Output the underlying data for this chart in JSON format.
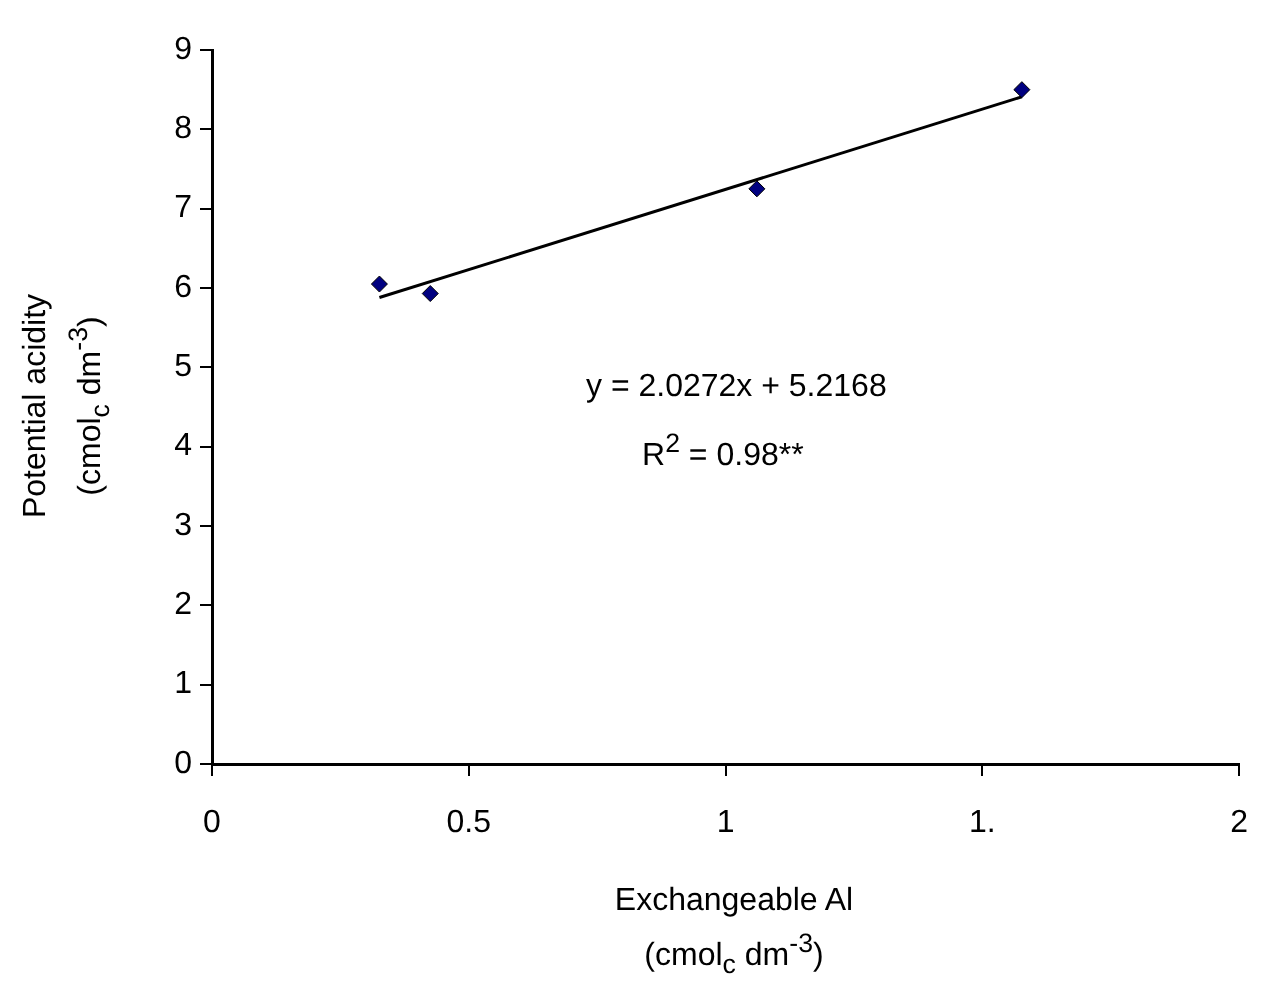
{
  "chart_data": {
    "type": "scatter",
    "xlabel": "Exchangeable Al\n(cmol$_{c}$ dm$^{-3}$)",
    "ylabel": "Potential acidity\n(cmol$_{c}$ dm$^{-3}$)",
    "series": [
      {
        "type": "scatter",
        "color": "#000080",
        "x": [
          0.326,
          0.425,
          1.061,
          1.577
        ],
        "values": [
          6.05,
          5.93,
          7.25,
          8.5
        ]
      },
      {
        "type": "line",
        "color": "#000000",
        "x": [
          0.326,
          1.577
        ],
        "values": [
          5.88,
          8.41
        ],
        "marker": "none"
      }
    ],
    "xlim": [
      0,
      2
    ],
    "xticks": [
      0,
      0.5,
      1,
      {
        "value": 1.5,
        "label": "1."
      },
      2
    ],
    "ylim": [
      0,
      9
    ],
    "yticks": [
      0,
      1,
      2,
      3,
      4,
      5,
      6,
      7,
      8,
      9
    ],
    "marker": "diamond",
    "grid": false,
    "legend": false,
    "annotations": [
      "y = 2.0272x + 5.2168",
      "R$^{2}$ = 0.98**"
    ]
  }
}
